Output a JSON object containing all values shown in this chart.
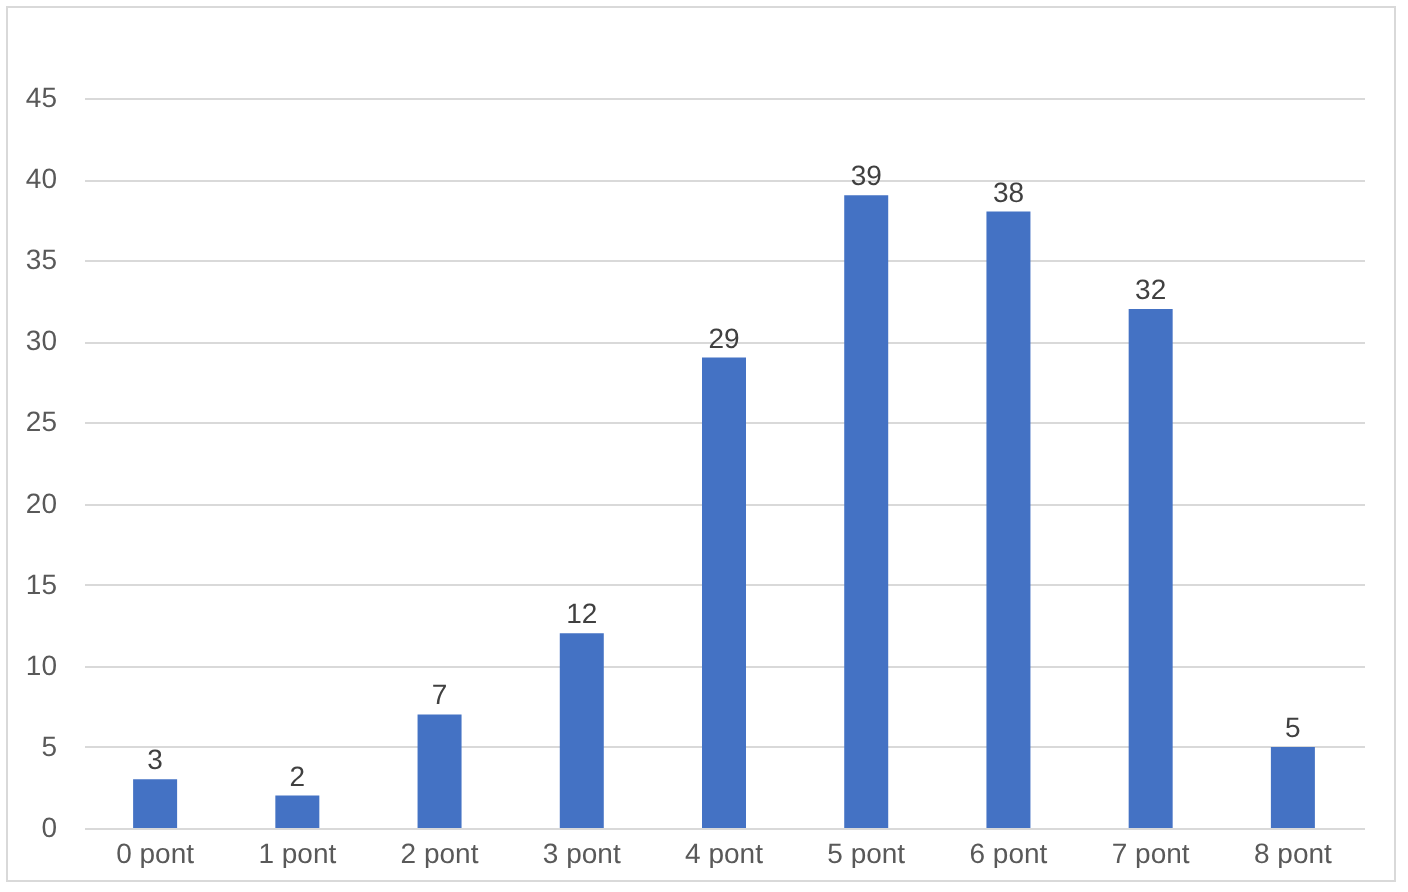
{
  "chart_data": {
    "type": "bar",
    "categories": [
      "0 pont",
      "1 pont",
      "2 pont",
      "3 pont",
      "4 pont",
      "5 pont",
      "6 pont",
      "7 pont",
      "8 pont"
    ],
    "values": [
      3,
      2,
      7,
      12,
      29,
      39,
      38,
      32,
      5
    ],
    "color": "#4472c4",
    "ylim": [
      0,
      45
    ],
    "yticks": [
      0,
      5,
      10,
      15,
      20,
      25,
      30,
      35,
      40,
      45
    ],
    "grid": "y",
    "data_labels": true
  }
}
